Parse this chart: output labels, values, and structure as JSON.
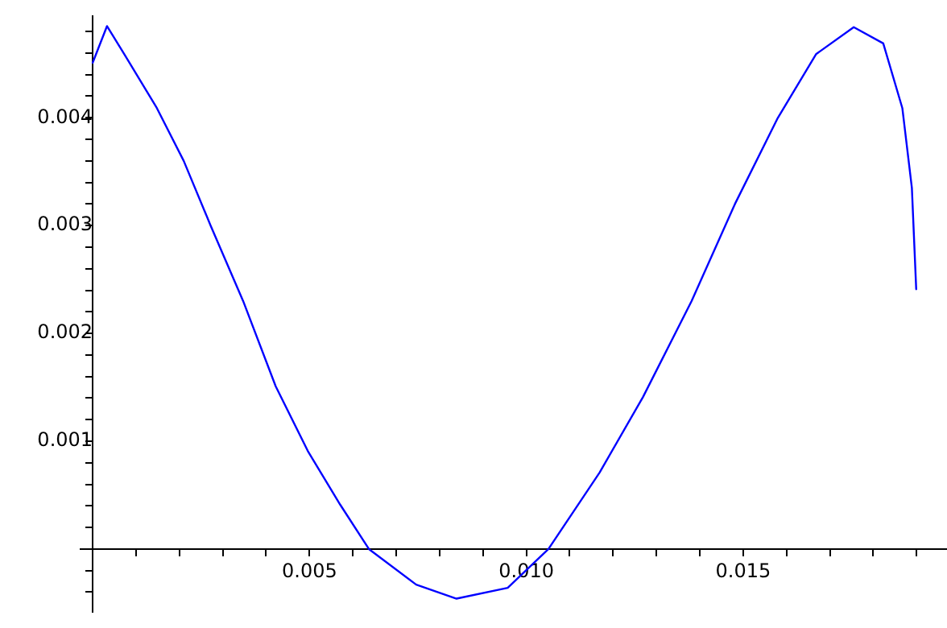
{
  "chart_data": {
    "type": "line",
    "xlim": [
      -0.00028,
      0.0197
    ],
    "ylim": [
      -0.00058,
      0.00494
    ],
    "xticks": [
      {
        "value": 0.001,
        "label": null
      },
      {
        "value": 0.002,
        "label": null
      },
      {
        "value": 0.003,
        "label": null
      },
      {
        "value": 0.004,
        "label": null
      },
      {
        "value": 0.005,
        "label": "0.005"
      },
      {
        "value": 0.006,
        "label": null
      },
      {
        "value": 0.007,
        "label": null
      },
      {
        "value": 0.008,
        "label": null
      },
      {
        "value": 0.009,
        "label": null
      },
      {
        "value": 0.01,
        "label": "0.010"
      },
      {
        "value": 0.011,
        "label": null
      },
      {
        "value": 0.012,
        "label": null
      },
      {
        "value": 0.013,
        "label": null
      },
      {
        "value": 0.014,
        "label": null
      },
      {
        "value": 0.015,
        "label": "0.015"
      },
      {
        "value": 0.016,
        "label": null
      },
      {
        "value": 0.017,
        "label": null
      },
      {
        "value": 0.018,
        "label": null
      },
      {
        "value": 0.019,
        "label": null
      }
    ],
    "yticks": [
      {
        "value": -0.0004,
        "label": null
      },
      {
        "value": -0.0002,
        "label": null
      },
      {
        "value": 0.0002,
        "label": null
      },
      {
        "value": 0.0004,
        "label": null
      },
      {
        "value": 0.0006,
        "label": null
      },
      {
        "value": 0.0008,
        "label": null
      },
      {
        "value": 0.001,
        "label": "0.001"
      },
      {
        "value": 0.0012,
        "label": null
      },
      {
        "value": 0.0014,
        "label": null
      },
      {
        "value": 0.0016,
        "label": null
      },
      {
        "value": 0.0018,
        "label": null
      },
      {
        "value": 0.002,
        "label": "0.002"
      },
      {
        "value": 0.0022,
        "label": null
      },
      {
        "value": 0.0024,
        "label": null
      },
      {
        "value": 0.0026,
        "label": null
      },
      {
        "value": 0.0028,
        "label": null
      },
      {
        "value": 0.003,
        "label": "0.003"
      },
      {
        "value": 0.0032,
        "label": null
      },
      {
        "value": 0.0034,
        "label": null
      },
      {
        "value": 0.0036,
        "label": null
      },
      {
        "value": 0.0038,
        "label": null
      },
      {
        "value": 0.004,
        "label": "0.004"
      },
      {
        "value": 0.0042,
        "label": null
      },
      {
        "value": 0.0044,
        "label": null
      },
      {
        "value": 0.0046,
        "label": null
      },
      {
        "value": 0.0048,
        "label": null
      }
    ],
    "grid": false,
    "marker": "none",
    "series": [
      {
        "color": "#0000ff",
        "x": [
          0,
          0.00033,
          0.00073,
          0.00148,
          0.0021,
          0.00272,
          0.00347,
          0.00422,
          0.00496,
          0.00571,
          0.00637,
          0.00746,
          0.00839,
          0.00957,
          0.01051,
          0.01169,
          0.01269,
          0.01381,
          0.01481,
          0.0158,
          0.01668,
          0.01755,
          0.01823,
          0.01867,
          0.01889,
          0.01899
        ],
        "values": [
          0.00451,
          0.00485,
          0.00459,
          0.00409,
          0.0036,
          0.003,
          0.0023,
          0.00151,
          0.00091,
          0.00041,
          0,
          -0.00033,
          -0.00046,
          -0.00036,
          0,
          0.00071,
          0.00141,
          0.0023,
          0.0032,
          0.004,
          0.00459,
          0.00484,
          0.00469,
          0.00409,
          0.00335,
          0.00241
        ]
      }
    ]
  }
}
